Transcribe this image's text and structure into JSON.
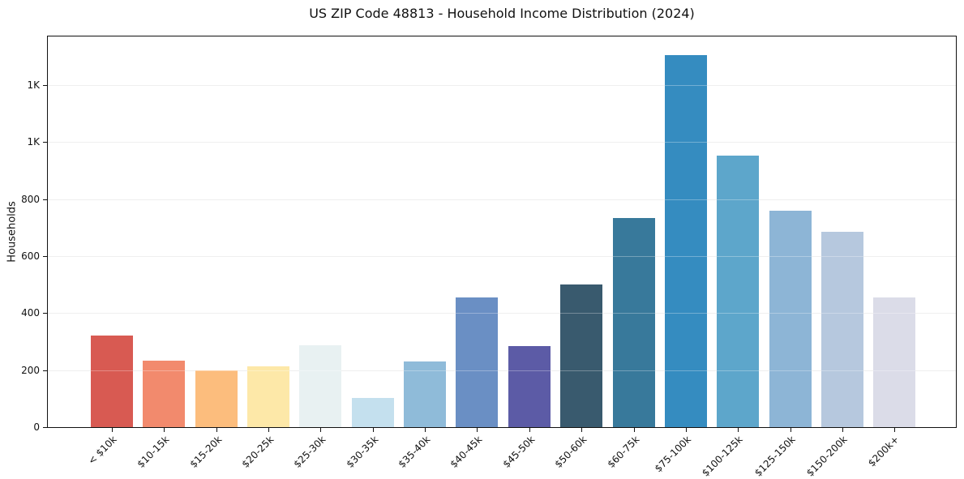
{
  "chart_data": {
    "type": "bar",
    "title": "US ZIP Code 48813 - Household Income Distribution (2024)",
    "xlabel": "",
    "ylabel": "Households",
    "categories": [
      "< $10k",
      "$10-15k",
      "$15-20k",
      "$20-25k",
      "$25-30k",
      "$30-35k",
      "$35-40k",
      "$40-45k",
      "$45-50k",
      "$50-60k",
      "$60-75k",
      "$75-100k",
      "$100-125k",
      "$125-150k",
      "$150-200k",
      "$200k+"
    ],
    "values": [
      322,
      232,
      200,
      214,
      286,
      101,
      229,
      456,
      283,
      500,
      734,
      1305,
      953,
      760,
      686,
      456
    ],
    "bar_colors": [
      "#d85a52",
      "#f28a6d",
      "#fcbd7d",
      "#fde8a8",
      "#e8f1f2",
      "#c4e0ee",
      "#8fbbd9",
      "#6a8fc4",
      "#5c5ba6",
      "#395a6e",
      "#38799b",
      "#358cc0",
      "#5da6cb",
      "#8db5d6",
      "#b6c8de",
      "#dbdce8"
    ],
    "ylim": [
      0,
      1370
    ],
    "yticks": [
      {
        "value": 0,
        "label": "0"
      },
      {
        "value": 200,
        "label": "200"
      },
      {
        "value": 400,
        "label": "400"
      },
      {
        "value": 600,
        "label": "600"
      },
      {
        "value": 800,
        "label": "800"
      },
      {
        "value": 1000,
        "label": "1K"
      },
      {
        "value": 1200,
        "label": "1K"
      }
    ],
    "grid": "horizontal, light gray, visible faintly over bars",
    "legend": "none",
    "colors": {
      "background": "#ffffff",
      "spine": "#111111",
      "gridline": "#e8e8e8",
      "text": "#111111"
    }
  }
}
